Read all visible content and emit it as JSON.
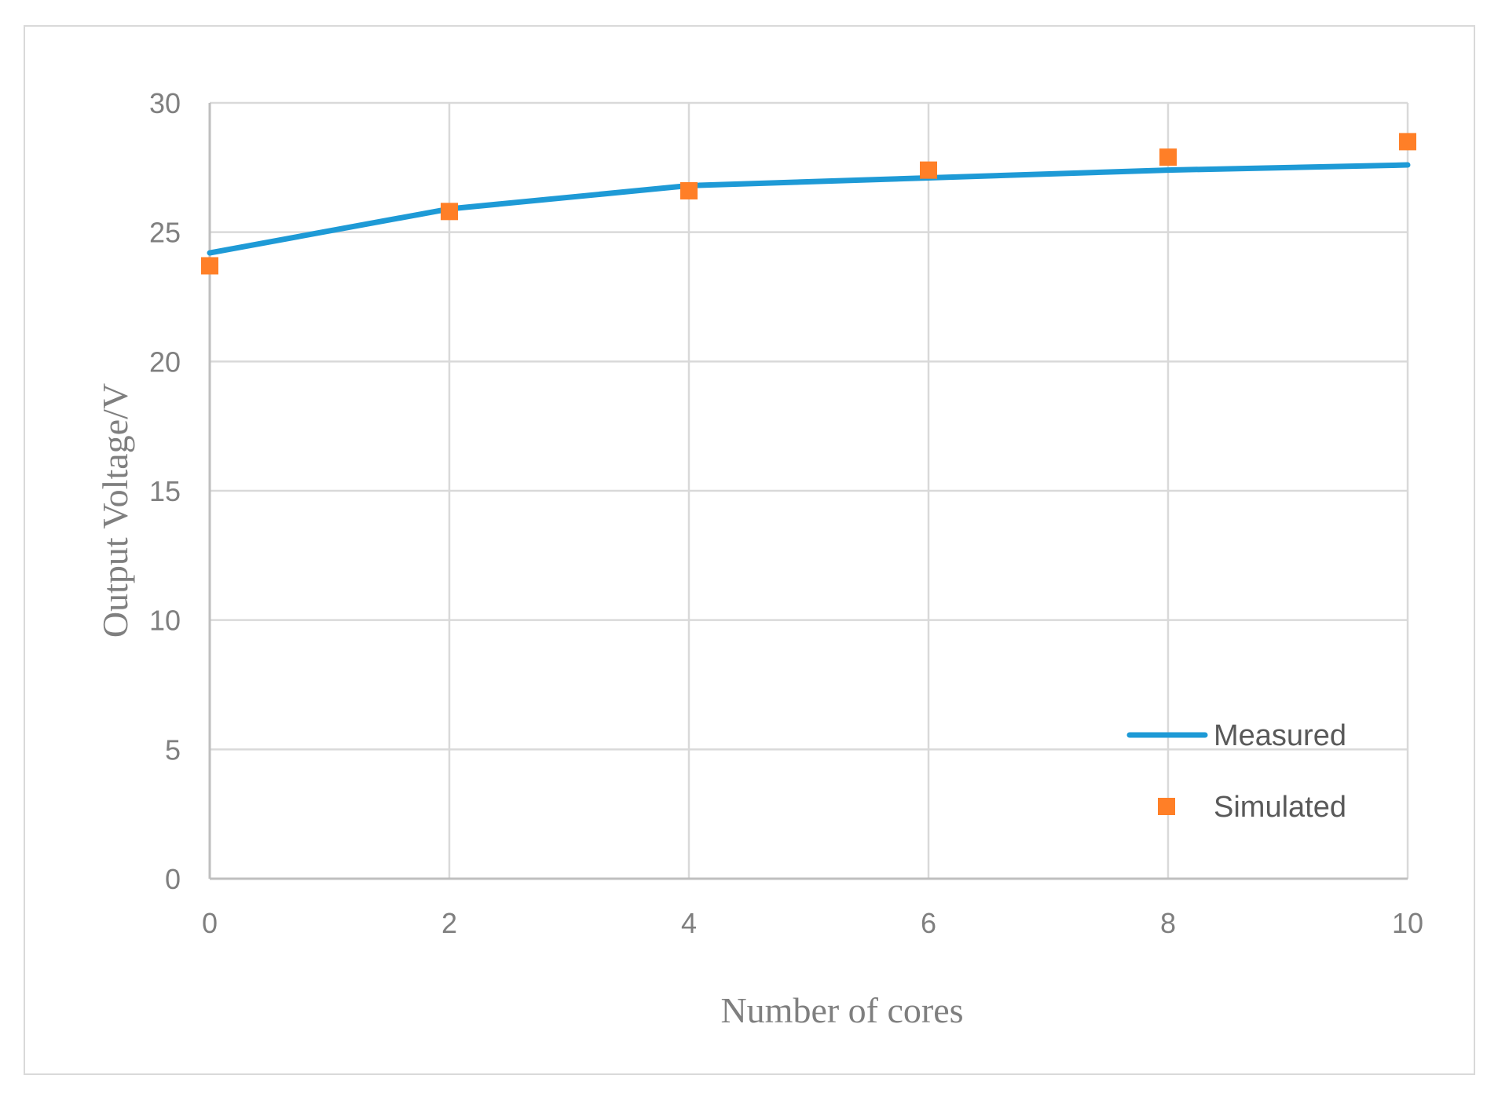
{
  "chart_data": {
    "type": "line",
    "title": "",
    "xlabel": "Number of cores",
    "ylabel": "Output Voltage/V",
    "xlim": [
      0,
      10
    ],
    "ylim": [
      0,
      30
    ],
    "x_ticks": [
      0,
      2,
      4,
      6,
      8,
      10
    ],
    "y_ticks": [
      0,
      5,
      10,
      15,
      20,
      25,
      30
    ],
    "grid": true,
    "legend_position": "bottom-right",
    "series": [
      {
        "name": "Measured",
        "style": "line",
        "color": "#1e9ad6",
        "x": [
          0,
          2,
          4,
          6,
          8,
          10
        ],
        "values": [
          24.2,
          25.9,
          26.8,
          27.1,
          27.4,
          27.6
        ]
      },
      {
        "name": "Simulated",
        "style": "square-marker",
        "color": "#ff7f27",
        "x": [
          0,
          2,
          4,
          6,
          8,
          10
        ],
        "values": [
          23.7,
          25.8,
          26.6,
          27.4,
          27.9,
          28.5
        ]
      }
    ]
  }
}
